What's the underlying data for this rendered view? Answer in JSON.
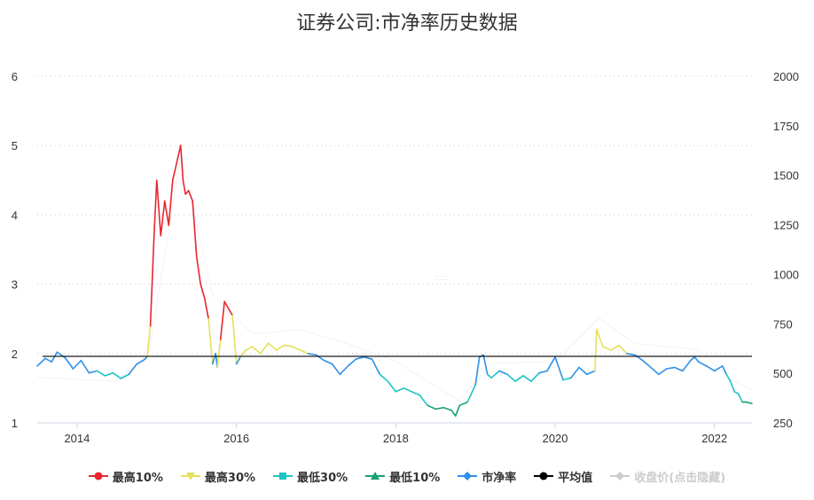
{
  "chart_data": {
    "type": "line",
    "title": "证券公司:市净率历史数据",
    "x_ticks": [
      "2014",
      "2016",
      "2018",
      "2020",
      "2022"
    ],
    "y_left": {
      "ticks": [
        1,
        2,
        3,
        4,
        5,
        6
      ],
      "range": [
        1,
        6
      ]
    },
    "y_right": {
      "ticks": [
        250,
        500,
        750,
        1000,
        1250,
        1500,
        1750,
        2000
      ],
      "range": [
        250,
        2000
      ]
    },
    "x_range": [
      2013.5,
      2022.47
    ],
    "average_pb": 1.96,
    "grid": true,
    "legend_position": "bottom",
    "thresholds": {
      "top10": 2.45,
      "top30": 2.0,
      "bottom30": 1.72,
      "bottom10": 1.32
    },
    "series": [
      {
        "name": "最高10%",
        "color": "#e8262f",
        "marker": "circle"
      },
      {
        "name": "最高30%",
        "color": "#e5e05a",
        "marker": "triangle-down"
      },
      {
        "name": "最低30%",
        "color": "#1bc3c3",
        "marker": "square"
      },
      {
        "name": "最低10%",
        "color": "#17a075",
        "marker": "triangle-up"
      },
      {
        "name": "市净率",
        "color": "#2f8fe8",
        "marker": "diamond"
      },
      {
        "name": "平均值",
        "color": "#000000",
        "marker": "circle"
      },
      {
        "name": "收盘价(点击隐藏)",
        "color": "#cccccc",
        "marker": "diamond",
        "hidden": true
      }
    ],
    "pb": {
      "x": [
        2013.5,
        2013.6,
        2013.68,
        2013.75,
        2013.85,
        2013.95,
        2014.05,
        2014.15,
        2014.25,
        2014.35,
        2014.45,
        2014.55,
        2014.65,
        2014.75,
        2014.83,
        2014.88,
        2014.92,
        2014.97,
        2015.0,
        2015.05,
        2015.1,
        2015.15,
        2015.2,
        2015.25,
        2015.3,
        2015.33,
        2015.36,
        2015.4,
        2015.45,
        2015.5,
        2015.55,
        2015.6,
        2015.65,
        2015.7,
        2015.74,
        2015.76,
        2015.8,
        2015.85,
        2015.9,
        2015.95,
        2016.0,
        2016.05,
        2016.12,
        2016.2,
        2016.3,
        2016.4,
        2016.5,
        2016.6,
        2016.7,
        2016.8,
        2016.9,
        2017.0,
        2017.1,
        2017.2,
        2017.3,
        2017.4,
        2017.5,
        2017.6,
        2017.7,
        2017.8,
        2017.9,
        2018.0,
        2018.1,
        2018.2,
        2018.3,
        2018.4,
        2018.5,
        2018.6,
        2018.7,
        2018.75,
        2018.8,
        2018.9,
        2019.0,
        2019.05,
        2019.1,
        2019.15,
        2019.2,
        2019.3,
        2019.4,
        2019.5,
        2019.6,
        2019.7,
        2019.8,
        2019.9,
        2020.0,
        2020.1,
        2020.2,
        2020.3,
        2020.4,
        2020.5,
        2020.52,
        2020.55,
        2020.6,
        2020.7,
        2020.8,
        2020.9,
        2021.0,
        2021.1,
        2021.2,
        2021.3,
        2021.4,
        2021.5,
        2021.6,
        2021.7,
        2021.75,
        2021.8,
        2021.9,
        2022.0,
        2022.1,
        2022.15,
        2022.2,
        2022.25,
        2022.3,
        2022.35,
        2022.4,
        2022.47
      ],
      "y": [
        1.82,
        1.93,
        1.88,
        2.02,
        1.94,
        1.78,
        1.9,
        1.72,
        1.75,
        1.68,
        1.72,
        1.64,
        1.7,
        1.85,
        1.9,
        1.95,
        2.4,
        3.8,
        4.5,
        3.7,
        4.2,
        3.85,
        4.5,
        4.75,
        5.0,
        4.5,
        4.3,
        4.35,
        4.2,
        3.4,
        3.0,
        2.8,
        2.5,
        1.85,
        2.0,
        1.8,
        2.2,
        2.75,
        2.65,
        2.55,
        1.85,
        1.95,
        2.05,
        2.1,
        2.0,
        2.15,
        2.05,
        2.12,
        2.1,
        2.05,
        2.0,
        1.98,
        1.9,
        1.85,
        1.7,
        1.82,
        1.92,
        1.95,
        1.92,
        1.7,
        1.6,
        1.45,
        1.5,
        1.45,
        1.4,
        1.25,
        1.2,
        1.22,
        1.18,
        1.1,
        1.25,
        1.3,
        1.55,
        1.95,
        1.98,
        1.7,
        1.65,
        1.75,
        1.7,
        1.6,
        1.68,
        1.6,
        1.72,
        1.75,
        1.95,
        1.62,
        1.65,
        1.8,
        1.7,
        1.75,
        2.35,
        2.25,
        2.1,
        2.05,
        2.12,
        2.0,
        1.98,
        1.9,
        1.8,
        1.7,
        1.78,
        1.8,
        1.75,
        1.9,
        1.95,
        1.88,
        1.82,
        1.75,
        1.82,
        1.7,
        1.6,
        1.45,
        1.42,
        1.3,
        1.3,
        1.28
      ]
    },
    "close_price": {
      "x": [
        2013.5,
        2014.0,
        2014.5,
        2014.9,
        2015.3,
        2015.7,
        2016.2,
        2016.8,
        2017.4,
        2018.0,
        2018.8,
        2019.2,
        2020.0,
        2020.55,
        2021.0,
        2021.8,
        2022.2,
        2022.47
      ],
      "y": [
        480,
        470,
        460,
        600,
        1600,
        900,
        700,
        720,
        650,
        560,
        360,
        550,
        560,
        780,
        650,
        620,
        470,
        420
      ]
    }
  }
}
